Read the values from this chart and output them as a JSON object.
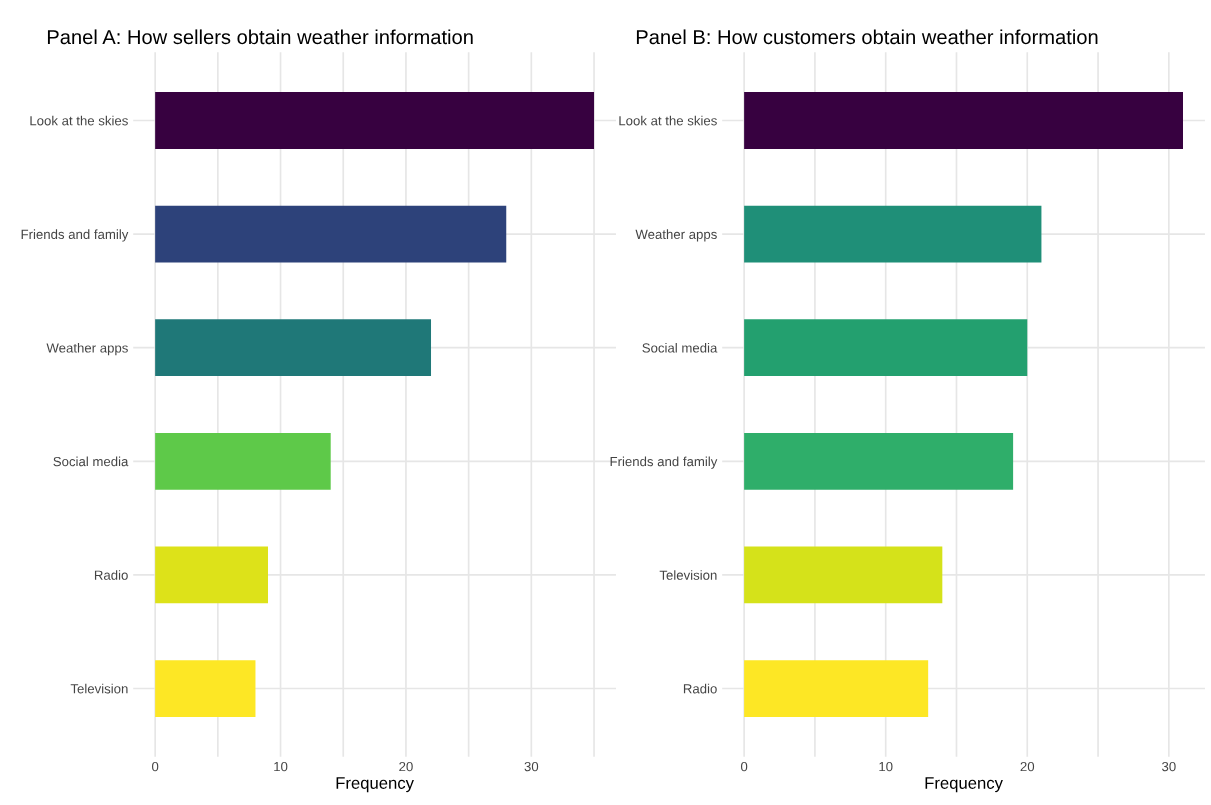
{
  "chart_data": [
    {
      "type": "bar",
      "orientation": "horizontal",
      "title": "Panel A: How sellers obtain weather information",
      "xlabel": "Frequency",
      "categories": [
        "Look at the skies",
        "Friends and family",
        "Weather apps",
        "Social media",
        "Radio",
        "Television"
      ],
      "values": [
        35,
        28,
        22,
        14,
        9,
        8
      ],
      "colors": [
        "#370140",
        "#2d427a",
        "#1f7878",
        "#5ec949",
        "#dde219",
        "#fde725"
      ],
      "xlim": [
        -1.75,
        36.75
      ],
      "xticks": [
        0,
        {
          "value": 5,
          "label": null
        },
        10,
        {
          "value": 15,
          "label": null
        },
        20,
        {
          "value": 25,
          "label": null
        },
        30,
        {
          "value": 35,
          "label": null
        }
      ],
      "grid": true
    },
    {
      "type": "bar",
      "orientation": "horizontal",
      "title": "Panel B: How customers obtain weather information",
      "xlabel": "Frequency",
      "categories": [
        "Look at the skies",
        "Weather apps",
        "Social media",
        "Friends and family",
        "Television",
        "Radio"
      ],
      "values": [
        31,
        21,
        20,
        19,
        14,
        13
      ],
      "colors": [
        "#370140",
        "#1f8f78",
        "#23a06f",
        "#2fae6a",
        "#d5e21a",
        "#fde725"
      ],
      "xlim": [
        -1.55,
        32.55
      ],
      "xticks": [
        0,
        {
          "value": 5,
          "label": null
        },
        10,
        {
          "value": 15,
          "label": null
        },
        20,
        {
          "value": 25,
          "label": null
        },
        30
      ],
      "grid": true
    }
  ]
}
